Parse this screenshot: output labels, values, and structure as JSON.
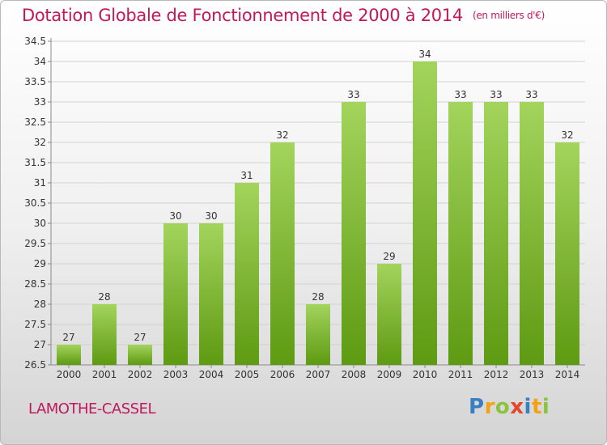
{
  "title": "Dotation Globale de Fonctionnement de 2000 à 2014",
  "unit_label": "(en milliers d'€)",
  "commune": "LAMOTHE-CASSEL",
  "brand": {
    "letters": [
      "P",
      "r",
      "o",
      "x",
      "i",
      "t",
      "i"
    ],
    "colors": [
      "#3a7fc4",
      "#f2a213",
      "#8ac43f",
      "#e2472e",
      "#3a7fc4",
      "#f2a213",
      "#8ac43f"
    ]
  },
  "colors": {
    "bar_top": "#a3d45c",
    "bar_bottom": "#5e9a12",
    "grid": "#d2d2d2",
    "axis": "#8a8a8a",
    "title": "#c2185b"
  },
  "chart_data": {
    "type": "bar",
    "categories": [
      "2000",
      "2001",
      "2002",
      "2003",
      "2004",
      "2005",
      "2006",
      "2007",
      "2008",
      "2009",
      "2010",
      "2011",
      "2012",
      "2013",
      "2014"
    ],
    "values": [
      27,
      28,
      27,
      30,
      30,
      31,
      32,
      28,
      33,
      29,
      34,
      33,
      33,
      33,
      32
    ],
    "value_labels": [
      "27",
      "28",
      "27",
      "30",
      "30",
      "31",
      "32",
      "28",
      "33",
      "29",
      "34",
      "33",
      "33",
      "33",
      "32"
    ],
    "y_ticks": [
      "26.5",
      "27",
      "27.5",
      "28",
      "28.5",
      "29",
      "29.5",
      "30",
      "30.5",
      "31",
      "31.5",
      "32",
      "32.5",
      "33",
      "33.5",
      "34",
      "34.5"
    ],
    "ylim": [
      26.5,
      34.5
    ],
    "grid": true,
    "xlabel": "",
    "ylabel": ""
  }
}
